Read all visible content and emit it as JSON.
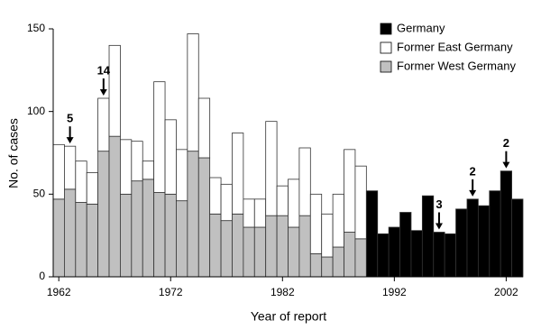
{
  "chart_data": {
    "type": "bar",
    "stacked": true,
    "x": [
      1962,
      1963,
      1964,
      1965,
      1966,
      1967,
      1968,
      1969,
      1970,
      1971,
      1972,
      1973,
      1974,
      1975,
      1976,
      1977,
      1978,
      1979,
      1980,
      1981,
      1982,
      1983,
      1984,
      1985,
      1986,
      1987,
      1988,
      1989,
      1990,
      1991,
      1992,
      1993,
      1994,
      1995,
      1996,
      1997,
      1998,
      1999,
      2000,
      2001,
      2002,
      2003
    ],
    "series": [
      {
        "name": "Germany",
        "color": "#000000",
        "values": [
          null,
          null,
          null,
          null,
          null,
          null,
          null,
          null,
          null,
          null,
          null,
          null,
          null,
          null,
          null,
          null,
          null,
          null,
          null,
          null,
          null,
          null,
          null,
          null,
          null,
          null,
          null,
          null,
          52,
          26,
          30,
          39,
          28,
          49,
          27,
          26,
          41,
          47,
          43,
          52,
          64,
          47
        ]
      },
      {
        "name": "Former East Germany",
        "color": "#ffffff",
        "values": [
          33,
          26,
          25,
          19,
          32,
          55,
          33,
          24,
          11,
          67,
          45,
          31,
          71,
          36,
          22,
          22,
          49,
          17,
          17,
          57,
          18,
          29,
          41,
          36,
          26,
          32,
          50,
          44,
          null,
          null,
          null,
          null,
          null,
          null,
          null,
          null,
          null,
          null,
          null,
          null,
          null,
          null
        ]
      },
      {
        "name": "Former West Germany",
        "color": "#c0c0c0",
        "values": [
          47,
          53,
          45,
          44,
          76,
          85,
          50,
          58,
          59,
          51,
          50,
          46,
          76,
          72,
          38,
          34,
          38,
          30,
          30,
          37,
          37,
          30,
          37,
          14,
          12,
          18,
          27,
          23,
          null,
          null,
          null,
          null,
          null,
          null,
          null,
          null,
          null,
          null,
          null,
          null,
          null,
          null
        ]
      }
    ],
    "annotations": [
      {
        "label": "5",
        "x": 1963
      },
      {
        "label": "14",
        "x": 1966
      },
      {
        "label": "3",
        "x": 1996
      },
      {
        "label": "2",
        "x": 1999
      },
      {
        "label": "2",
        "x": 2002
      }
    ],
    "xlabel": "Year of report",
    "ylabel": "No. of cases",
    "xlim": [
      1961.5,
      2003.5
    ],
    "xticks": [
      1962,
      1972,
      1982,
      1992,
      2002
    ],
    "ylim": [
      0,
      150
    ],
    "yticks": [
      0,
      50,
      100,
      150
    ],
    "legend": "upper-right",
    "grid": false
  }
}
